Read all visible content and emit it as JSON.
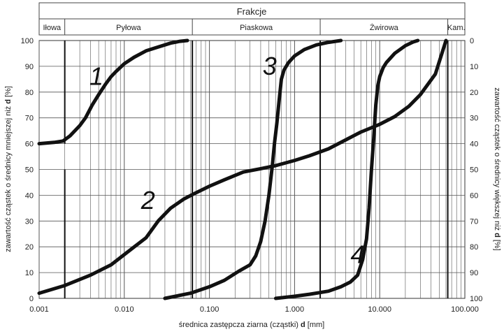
{
  "chart_data": {
    "type": "line",
    "header": "Frakcje",
    "fractions": [
      {
        "name": "Iłowa",
        "from": 0.001,
        "to": 0.002
      },
      {
        "name": "Pyłowa",
        "from": 0.002,
        "to": 0.063
      },
      {
        "name": "Piaskowa",
        "from": 0.063,
        "to": 2.0
      },
      {
        "name": "Żwirowa",
        "from": 2.0,
        "to": 63.0
      },
      {
        "name": "Kam.",
        "from": 63.0,
        "to": 100.0
      }
    ],
    "xscale": "log",
    "xlim": [
      0.001,
      100
    ],
    "ylim": [
      0,
      100
    ],
    "x_ticks": [
      "0.001",
      "0.010",
      "0.100",
      "1.000",
      "10.000",
      "100.000"
    ],
    "y_ticks_left": [
      "0",
      "10",
      "20",
      "30",
      "40",
      "50",
      "60",
      "70",
      "80",
      "90",
      "100"
    ],
    "y_ticks_right": [
      "100",
      "90",
      "80",
      "70",
      "60",
      "50",
      "40",
      "30",
      "20",
      "10",
      "0"
    ],
    "xlabel_prefix": "średnica zastępcza ziarna (cząstki)",
    "xlabel_bold": "d",
    "xlabel_suffix": "[mm]",
    "ylabel_left_prefix": "zawartość cząstek o średnicy mniejszej niż",
    "ylabel_left_bold": "d",
    "ylabel_left_suffix": "[%]",
    "ylabel_right_prefix": "zawartość cząstek o średnicy większej niż",
    "ylabel_right_bold": "d",
    "ylabel_right_suffix": "[%]",
    "grid": true,
    "series": [
      {
        "name": "1",
        "label_at": {
          "x": 0.0047,
          "y": 86
        },
        "x": [
          0.001,
          0.0015,
          0.0019,
          0.0023,
          0.003,
          0.0035,
          0.0042,
          0.005,
          0.006,
          0.007,
          0.008,
          0.01,
          0.013,
          0.018,
          0.025,
          0.035,
          0.045,
          0.055
        ],
        "y": [
          60,
          60.5,
          61,
          63,
          67,
          70,
          75,
          79,
          83,
          86,
          88,
          91,
          93.5,
          96,
          97.5,
          99,
          99.7,
          100
        ]
      },
      {
        "name": "2",
        "label_at": {
          "x": 0.019,
          "y": 38
        },
        "x": [
          0.001,
          0.002,
          0.004,
          0.007,
          0.012,
          0.018,
          0.025,
          0.035,
          0.05,
          0.07,
          0.1,
          0.15,
          0.25,
          0.4,
          0.6,
          1.0,
          1.5,
          2.5,
          4,
          6,
          10,
          15,
          22,
          30,
          45,
          60
        ],
        "y": [
          2,
          5,
          9,
          13,
          19,
          23.5,
          30,
          35,
          38.5,
          41,
          43.5,
          46,
          49,
          50.3,
          51.5,
          53.5,
          55.3,
          58,
          61.5,
          64.5,
          67.5,
          70.5,
          74.5,
          79,
          87,
          100
        ]
      },
      {
        "name": "3",
        "label_at": {
          "x": 0.51,
          "y": 90
        },
        "x": [
          0.03,
          0.06,
          0.1,
          0.15,
          0.22,
          0.3,
          0.35,
          0.4,
          0.45,
          0.5,
          0.55,
          0.58,
          0.62,
          0.66,
          0.7,
          0.75,
          0.85,
          1.0,
          1.3,
          1.8,
          2.5,
          3.5
        ],
        "y": [
          0,
          2,
          4.5,
          7,
          10.5,
          13,
          16.5,
          22,
          30,
          40,
          52,
          60,
          68,
          77,
          85,
          88.5,
          91.5,
          94,
          96.5,
          98.3,
          99.3,
          100
        ]
      },
      {
        "name": "4",
        "label_at": {
          "x": 5.5,
          "y": 17
        },
        "x": [
          0.6,
          1.0,
          1.5,
          2.5,
          3.5,
          4.5,
          5.5,
          6.3,
          7.0,
          7.5,
          8.0,
          8.5,
          9.0,
          9.5,
          10.0,
          11,
          12,
          15,
          20,
          25,
          28
        ],
        "y": [
          0,
          0.8,
          1.6,
          2.8,
          4.5,
          6.3,
          9,
          15,
          23,
          35,
          50,
          62,
          75,
          82.5,
          86,
          89.5,
          91.5,
          95,
          98,
          99.5,
          100
        ]
      }
    ]
  }
}
